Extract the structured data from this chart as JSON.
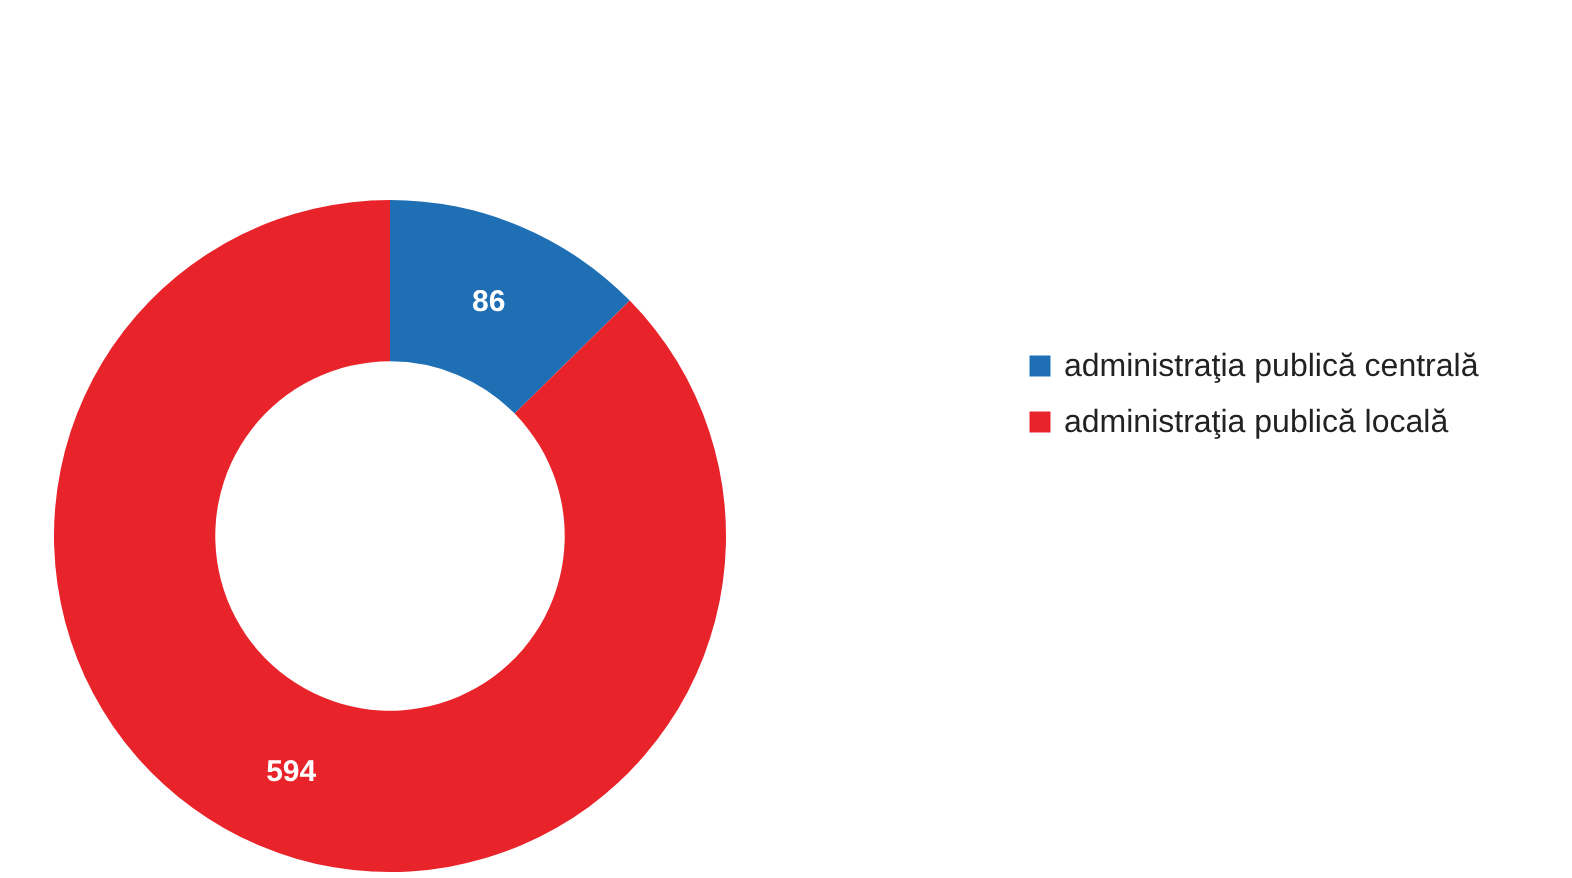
{
  "chart_data": {
    "type": "donut",
    "categories": [
      "administraţia publică centrală",
      "administraţia publică locală"
    ],
    "values": [
      86,
      594
    ],
    "colors": [
      "#1f6fb5",
      "#e8232a"
    ],
    "data_labels": true,
    "legend": "right"
  }
}
